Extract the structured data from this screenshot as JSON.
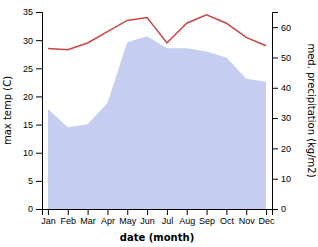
{
  "chart_data": {
    "type": "line",
    "xlabel": "date (month)",
    "ylabel": "max temp (C)",
    "y2label": "med. precipitation (kg/m2)",
    "categories": [
      "Jan",
      "Feb",
      "Mar",
      "Apr",
      "May",
      "Jun",
      "Jul",
      "Aug",
      "Sep",
      "Oct",
      "Nov",
      "Dec"
    ],
    "series": [
      {
        "type": "area",
        "color": "#c5cef0",
        "axis": "y2",
        "values": [
          33,
          27,
          28,
          35,
          55,
          57,
          53,
          53,
          52,
          50,
          43,
          42
        ]
      },
      {
        "type": "line",
        "color": "#cc4444",
        "values": [
          28.5,
          28.3,
          29.5,
          31.5,
          33.5,
          34.0,
          29.5,
          33.0,
          34.5,
          33.0,
          30.5,
          29.0
        ]
      }
    ],
    "ylim": [
      0,
      35
    ],
    "yticks": [
      0,
      5,
      10,
      15,
      20,
      25,
      30,
      35
    ],
    "y2lim": [
      0,
      65
    ],
    "y2ticks": [
      0,
      10,
      20,
      30,
      40,
      50,
      60
    ],
    "grid": false
  }
}
